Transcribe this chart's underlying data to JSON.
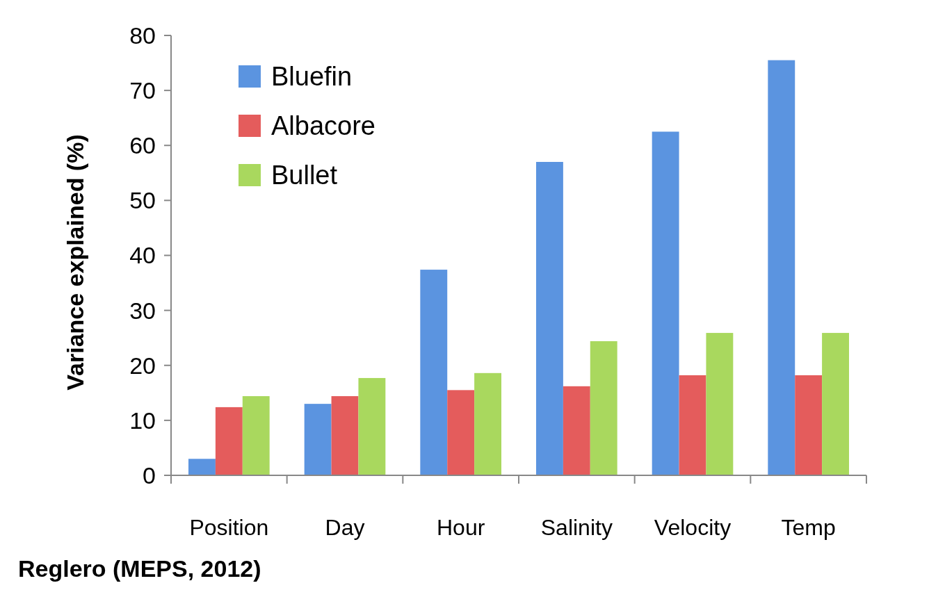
{
  "chart_data": {
    "type": "bar",
    "ylabel": "Variance explained (%)",
    "categories": [
      "Position",
      "Day",
      "Hour",
      "Salinity",
      "Velocity",
      "Temp"
    ],
    "series": [
      {
        "name": "Bluefin",
        "color": "#5b94e0",
        "values": [
          3,
          13,
          37.4,
          57,
          62.5,
          75.5
        ]
      },
      {
        "name": "Albacore",
        "color": "#e45c5c",
        "values": [
          12.4,
          14.4,
          15.5,
          16.2,
          18.2,
          18.2
        ]
      },
      {
        "name": "Bullet",
        "color": "#a9d85e",
        "values": [
          14.4,
          17.7,
          18.6,
          24.4,
          25.9,
          25.9
        ]
      }
    ],
    "ylim": [
      0,
      80
    ],
    "yticks": [
      0,
      10,
      20,
      30,
      40,
      50,
      60,
      70,
      80
    ],
    "grid": false,
    "legend": "top left",
    "annotations": [
      "Reglero (MEPS, 2012)"
    ]
  }
}
